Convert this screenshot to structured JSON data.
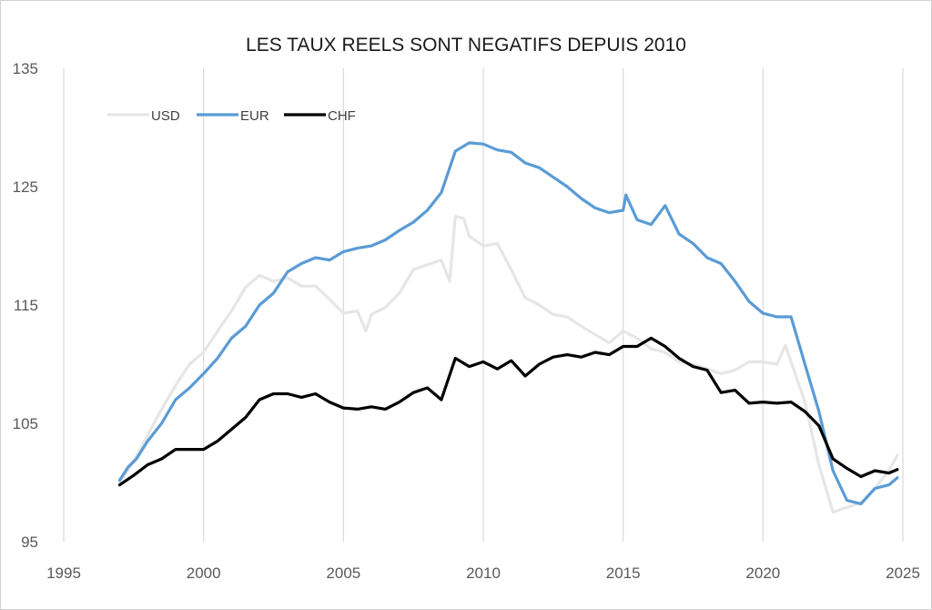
{
  "chart_data": {
    "type": "line",
    "title": "LES TAUX REELS SONT NEGATIFS DEPUIS 2010",
    "xlabel": "",
    "ylabel": "",
    "xlim": [
      1995,
      2025
    ],
    "ylim": [
      95,
      135
    ],
    "x_ticks": [
      1995,
      2000,
      2005,
      2010,
      2015,
      2020,
      2025
    ],
    "y_ticks": [
      95,
      105,
      115,
      125,
      135
    ],
    "grid": "vertical",
    "legend_position": "top-left",
    "series": [
      {
        "name": "USD",
        "color": "#e6e6e6",
        "points": [
          [
            1997.0,
            100.0
          ],
          [
            1997.5,
            101.8
          ],
          [
            1998.0,
            104.0
          ],
          [
            1998.5,
            106.2
          ],
          [
            1999.0,
            108.2
          ],
          [
            1999.5,
            110.0
          ],
          [
            2000.0,
            111.0
          ],
          [
            2000.5,
            112.8
          ],
          [
            2001.0,
            114.5
          ],
          [
            2001.5,
            116.5
          ],
          [
            2002.0,
            117.5
          ],
          [
            2002.5,
            117.0
          ],
          [
            2003.0,
            117.3
          ],
          [
            2003.5,
            116.6
          ],
          [
            2004.0,
            116.6
          ],
          [
            2004.5,
            115.5
          ],
          [
            2005.0,
            114.3
          ],
          [
            2005.5,
            114.5
          ],
          [
            2005.8,
            112.8
          ],
          [
            2006.0,
            114.2
          ],
          [
            2006.5,
            114.8
          ],
          [
            2007.0,
            116.0
          ],
          [
            2007.5,
            118.0
          ],
          [
            2008.0,
            118.4
          ],
          [
            2008.5,
            118.8
          ],
          [
            2008.8,
            117.0
          ],
          [
            2009.0,
            122.5
          ],
          [
            2009.3,
            122.3
          ],
          [
            2009.5,
            120.8
          ],
          [
            2010.0,
            120.0
          ],
          [
            2010.5,
            120.2
          ],
          [
            2011.0,
            118.0
          ],
          [
            2011.5,
            115.6
          ],
          [
            2012.0,
            115.0
          ],
          [
            2012.5,
            114.2
          ],
          [
            2013.0,
            114.0
          ],
          [
            2013.5,
            113.2
          ],
          [
            2014.0,
            112.5
          ],
          [
            2014.5,
            111.8
          ],
          [
            2015.0,
            112.8
          ],
          [
            2015.5,
            112.2
          ],
          [
            2016.0,
            111.3
          ],
          [
            2016.5,
            111.0
          ],
          [
            2017.0,
            110.2
          ],
          [
            2017.5,
            110.0
          ],
          [
            2018.0,
            109.6
          ],
          [
            2018.5,
            109.2
          ],
          [
            2019.0,
            109.5
          ],
          [
            2019.5,
            110.2
          ],
          [
            2020.0,
            110.2
          ],
          [
            2020.5,
            110.0
          ],
          [
            2020.8,
            111.6
          ],
          [
            2021.0,
            110.2
          ],
          [
            2021.5,
            106.8
          ],
          [
            2022.0,
            101.5
          ],
          [
            2022.5,
            97.5
          ],
          [
            2023.0,
            97.9
          ],
          [
            2023.5,
            98.3
          ],
          [
            2024.0,
            99.5
          ],
          [
            2024.5,
            101.0
          ],
          [
            2024.8,
            102.3
          ]
        ]
      },
      {
        "name": "EUR",
        "color": "#5b9bd5",
        "points": [
          [
            1997.0,
            100.2
          ],
          [
            1997.3,
            101.3
          ],
          [
            1997.6,
            102.0
          ],
          [
            1998.0,
            103.5
          ],
          [
            1998.5,
            105.0
          ],
          [
            1999.0,
            107.0
          ],
          [
            1999.5,
            108.0
          ],
          [
            2000.0,
            109.2
          ],
          [
            2000.5,
            110.5
          ],
          [
            2001.0,
            112.2
          ],
          [
            2001.5,
            113.2
          ],
          [
            2002.0,
            115.0
          ],
          [
            2002.5,
            116.0
          ],
          [
            2003.0,
            117.8
          ],
          [
            2003.5,
            118.5
          ],
          [
            2004.0,
            119.0
          ],
          [
            2004.5,
            118.8
          ],
          [
            2005.0,
            119.5
          ],
          [
            2005.5,
            119.8
          ],
          [
            2006.0,
            120.0
          ],
          [
            2006.5,
            120.5
          ],
          [
            2007.0,
            121.3
          ],
          [
            2007.5,
            122.0
          ],
          [
            2008.0,
            123.0
          ],
          [
            2008.5,
            124.5
          ],
          [
            2009.0,
            128.0
          ],
          [
            2009.5,
            128.7
          ],
          [
            2010.0,
            128.6
          ],
          [
            2010.5,
            128.1
          ],
          [
            2011.0,
            127.9
          ],
          [
            2011.5,
            127.0
          ],
          [
            2012.0,
            126.6
          ],
          [
            2012.5,
            125.8
          ],
          [
            2013.0,
            125.0
          ],
          [
            2013.5,
            124.0
          ],
          [
            2014.0,
            123.2
          ],
          [
            2014.5,
            122.8
          ],
          [
            2015.0,
            123.0
          ],
          [
            2015.1,
            124.3
          ],
          [
            2015.5,
            122.2
          ],
          [
            2016.0,
            121.8
          ],
          [
            2016.5,
            123.4
          ],
          [
            2017.0,
            121.0
          ],
          [
            2017.5,
            120.2
          ],
          [
            2018.0,
            119.0
          ],
          [
            2018.5,
            118.5
          ],
          [
            2019.0,
            117.0
          ],
          [
            2019.5,
            115.3
          ],
          [
            2020.0,
            114.3
          ],
          [
            2020.5,
            114.0
          ],
          [
            2021.0,
            114.0
          ],
          [
            2021.5,
            110.0
          ],
          [
            2022.0,
            106.0
          ],
          [
            2022.5,
            101.0
          ],
          [
            2023.0,
            98.5
          ],
          [
            2023.5,
            98.2
          ],
          [
            2024.0,
            99.5
          ],
          [
            2024.5,
            99.8
          ],
          [
            2024.8,
            100.4
          ]
        ]
      },
      {
        "name": "CHF",
        "color": "#000000",
        "points": [
          [
            1997.0,
            99.8
          ],
          [
            1997.5,
            100.6
          ],
          [
            1998.0,
            101.5
          ],
          [
            1998.5,
            102.0
          ],
          [
            1999.0,
            102.8
          ],
          [
            1999.5,
            102.8
          ],
          [
            2000.0,
            102.8
          ],
          [
            2000.5,
            103.5
          ],
          [
            2001.0,
            104.5
          ],
          [
            2001.5,
            105.5
          ],
          [
            2002.0,
            107.0
          ],
          [
            2002.5,
            107.5
          ],
          [
            2003.0,
            107.5
          ],
          [
            2003.5,
            107.2
          ],
          [
            2004.0,
            107.5
          ],
          [
            2004.5,
            106.8
          ],
          [
            2005.0,
            106.3
          ],
          [
            2005.5,
            106.2
          ],
          [
            2006.0,
            106.4
          ],
          [
            2006.5,
            106.2
          ],
          [
            2007.0,
            106.8
          ],
          [
            2007.5,
            107.6
          ],
          [
            2008.0,
            108.0
          ],
          [
            2008.5,
            107.0
          ],
          [
            2009.0,
            110.5
          ],
          [
            2009.5,
            109.8
          ],
          [
            2010.0,
            110.2
          ],
          [
            2010.5,
            109.6
          ],
          [
            2011.0,
            110.3
          ],
          [
            2011.5,
            109.0
          ],
          [
            2012.0,
            110.0
          ],
          [
            2012.5,
            110.6
          ],
          [
            2013.0,
            110.8
          ],
          [
            2013.5,
            110.6
          ],
          [
            2014.0,
            111.0
          ],
          [
            2014.5,
            110.8
          ],
          [
            2015.0,
            111.5
          ],
          [
            2015.5,
            111.5
          ],
          [
            2016.0,
            112.2
          ],
          [
            2016.5,
            111.5
          ],
          [
            2017.0,
            110.5
          ],
          [
            2017.5,
            109.8
          ],
          [
            2018.0,
            109.5
          ],
          [
            2018.5,
            107.6
          ],
          [
            2019.0,
            107.8
          ],
          [
            2019.5,
            106.7
          ],
          [
            2020.0,
            106.8
          ],
          [
            2020.5,
            106.7
          ],
          [
            2021.0,
            106.8
          ],
          [
            2021.5,
            106.0
          ],
          [
            2022.0,
            104.8
          ],
          [
            2022.5,
            102.0
          ],
          [
            2023.0,
            101.2
          ],
          [
            2023.5,
            100.5
          ],
          [
            2024.0,
            101.0
          ],
          [
            2024.5,
            100.8
          ],
          [
            2024.8,
            101.1
          ]
        ]
      }
    ]
  }
}
